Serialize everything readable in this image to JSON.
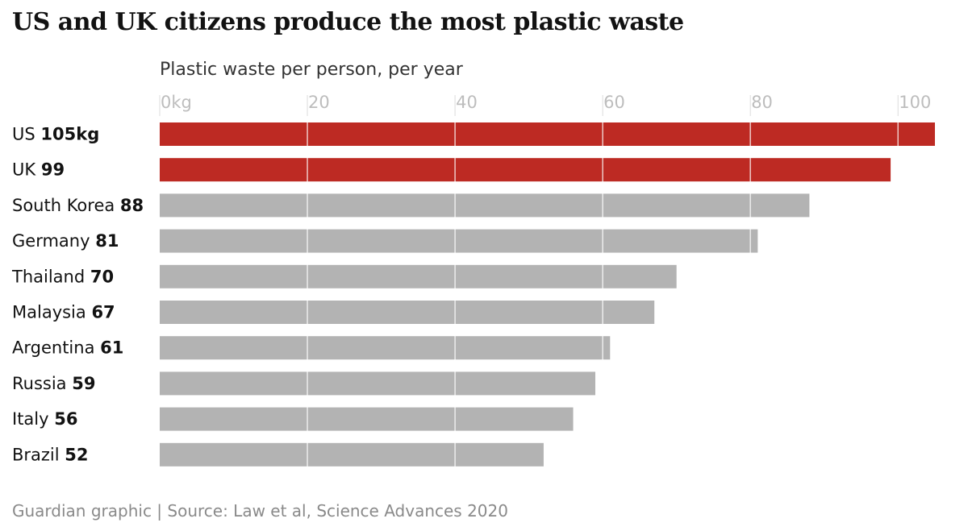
{
  "chart": {
    "title": "US and UK citizens produce the most plastic waste",
    "subtitle": "Plastic waste per person, per year",
    "source": "Guardian graphic | Source: Law et al, Science Advances 2020"
  },
  "colors": {
    "highlight": "#bd2a23",
    "default": "#b3b3b3",
    "tick_text": "#bdbdbd",
    "gridline": "#ffffff"
  },
  "chart_data": {
    "type": "bar",
    "orientation": "horizontal",
    "title": "US and UK citizens produce the most plastic waste",
    "xlabel": "Plastic waste per person, per year",
    "xlim": [
      0,
      105
    ],
    "xticks": [
      0,
      20,
      40,
      60,
      80,
      100
    ],
    "xtick_labels": [
      "0kg",
      "20",
      "40",
      "60",
      "80",
      "100"
    ],
    "grid": true,
    "categories": [
      "US",
      "UK",
      "South Korea",
      "Germany",
      "Thailand",
      "Malaysia",
      "Argentina",
      "Russia",
      "Italy",
      "Brazil"
    ],
    "values": [
      105,
      99,
      88,
      81,
      70,
      67,
      61,
      59,
      56,
      52
    ],
    "value_labels": [
      "105kg",
      "99",
      "88",
      "81",
      "70",
      "67",
      "61",
      "59",
      "56",
      "52"
    ],
    "highlighted": [
      true,
      true,
      false,
      false,
      false,
      false,
      false,
      false,
      false,
      false
    ]
  }
}
